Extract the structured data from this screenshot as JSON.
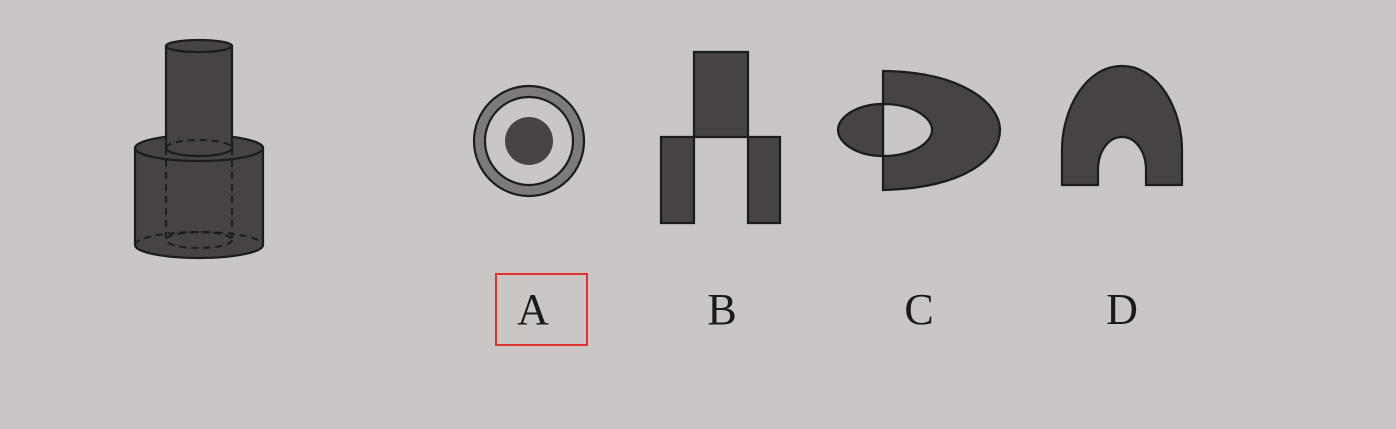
{
  "options": {
    "a": {
      "label": "A"
    },
    "b": {
      "label": "B"
    },
    "c": {
      "label": "C"
    },
    "d": {
      "label": "D"
    }
  },
  "selected_option": "A",
  "colors": {
    "background": "#c9c6c5",
    "shape_fill": "#464342",
    "outline": "#1c1c1c",
    "ring_fill": "#7d7a79",
    "selection_border": "#e0312f"
  }
}
